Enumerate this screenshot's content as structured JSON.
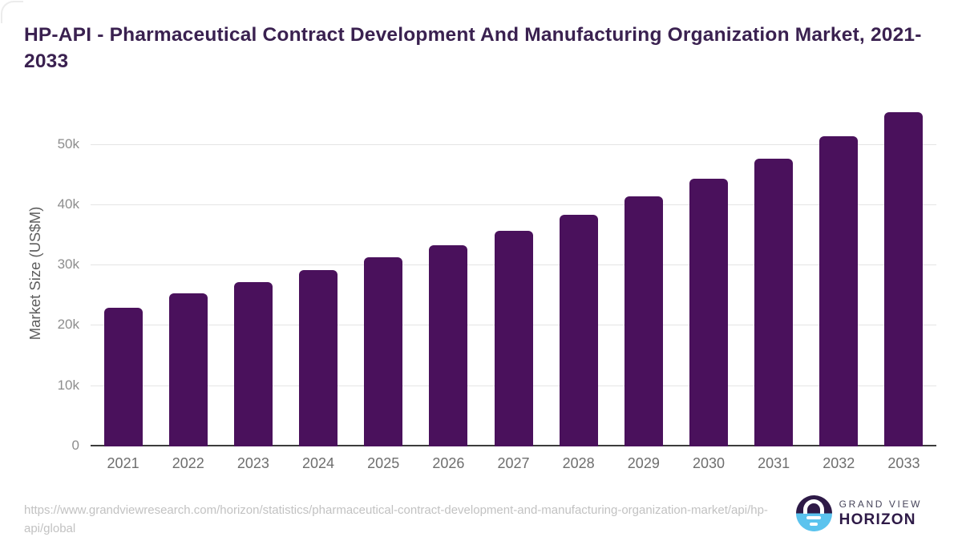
{
  "title": "HP-API - Pharmaceutical Contract Development And Manufacturing Organization Market, 2021-2033",
  "chart_data": {
    "type": "bar",
    "title": "HP-API - Pharmaceutical Contract Development And Manufacturing Organization Market, 2021-2033",
    "categories": [
      "2021",
      "2022",
      "2023",
      "2024",
      "2025",
      "2026",
      "2027",
      "2028",
      "2029",
      "2030",
      "2031",
      "2032",
      "2033"
    ],
    "values": [
      23000,
      25350,
      27250,
      29250,
      31300,
      33350,
      35750,
      38450,
      41400,
      44400,
      47650,
      51450,
      55350
    ],
    "xlabel": "",
    "ylabel": "Market Size (US$M)",
    "ylim": [
      0,
      57400
    ],
    "yticks": [
      {
        "value": 0,
        "label": "0"
      },
      {
        "value": 10000,
        "label": "10k"
      },
      {
        "value": 20000,
        "label": "20k"
      },
      {
        "value": 30000,
        "label": "30k"
      },
      {
        "value": 40000,
        "label": "40k"
      },
      {
        "value": 50000,
        "label": "50k"
      }
    ],
    "grid": "horizontal",
    "legend": "none",
    "bar_color": "#4a115c",
    "gridline_color": "#e5e5e5",
    "axis_line_color": "#3c3c3c"
  },
  "colors": {
    "title": "#3a2150",
    "tick_label": "#8d8d8d",
    "x_label": "#6e6e6e",
    "url_text": "#c2c2c2",
    "logo_dark": "#2e1a47",
    "logo_blue": "#5bc3ee"
  },
  "footer": {
    "source_url": "https://www.grandviewresearch.com/horizon/statistics/pharmaceutical-contract-development-and-manufacturing-organization-market/api/hp-api/global",
    "logo": {
      "line1": "GRAND VIEW",
      "line2": "HORIZON"
    }
  }
}
